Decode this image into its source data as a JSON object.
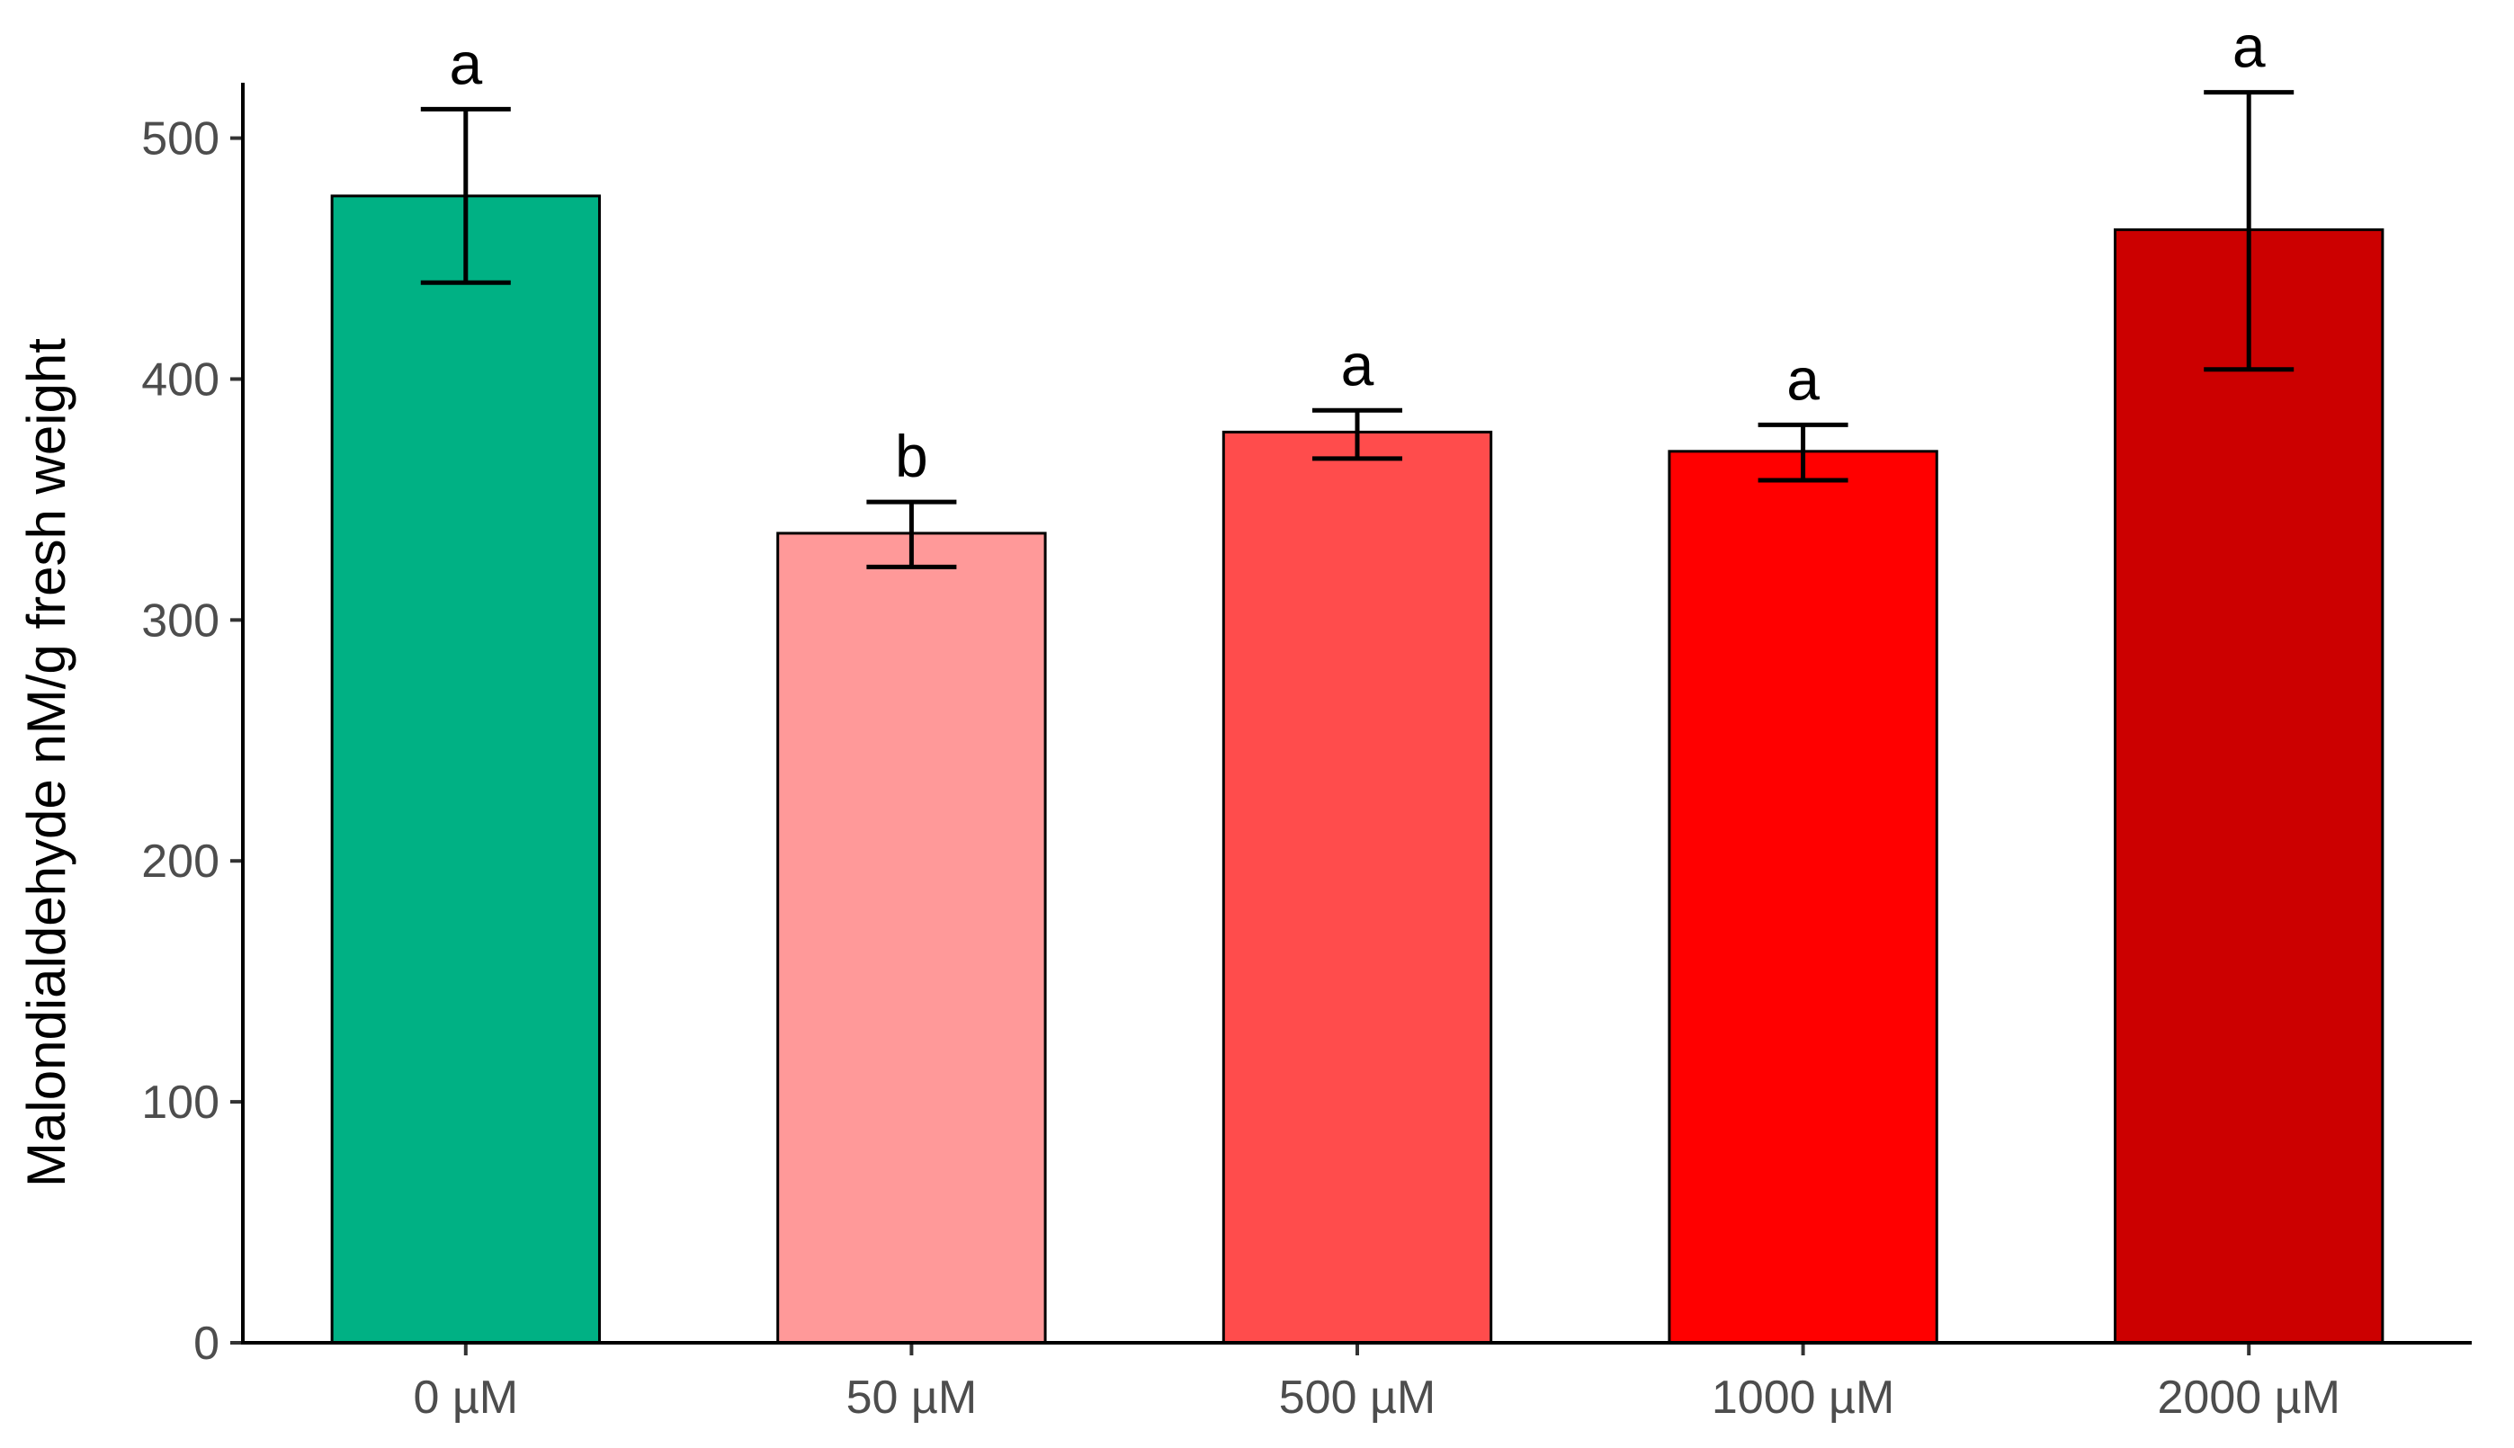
{
  "chart_data": {
    "type": "bar",
    "title": "",
    "xlabel": "",
    "ylabel": "Malondialdehyde nM/g fresh weight",
    "ylim": [
      0,
      520
    ],
    "yticks": [
      0,
      100,
      200,
      300,
      400,
      500
    ],
    "categories": [
      "0 µM",
      "50 µM",
      "500 µM",
      "1000 µM",
      "2000 µM"
    ],
    "values": [
      476,
      336,
      378,
      370,
      462
    ],
    "error_upper": [
      512,
      349,
      387,
      381,
      519
    ],
    "error_lower": [
      440,
      322,
      367,
      358,
      404
    ],
    "significance": [
      "a",
      "b",
      "a",
      "a",
      "a"
    ],
    "bar_colors": [
      "#00b184",
      "#ff9999",
      "#ff4c4c",
      "#ff0000",
      "#cc0000"
    ],
    "grid": false,
    "legend": "none"
  }
}
